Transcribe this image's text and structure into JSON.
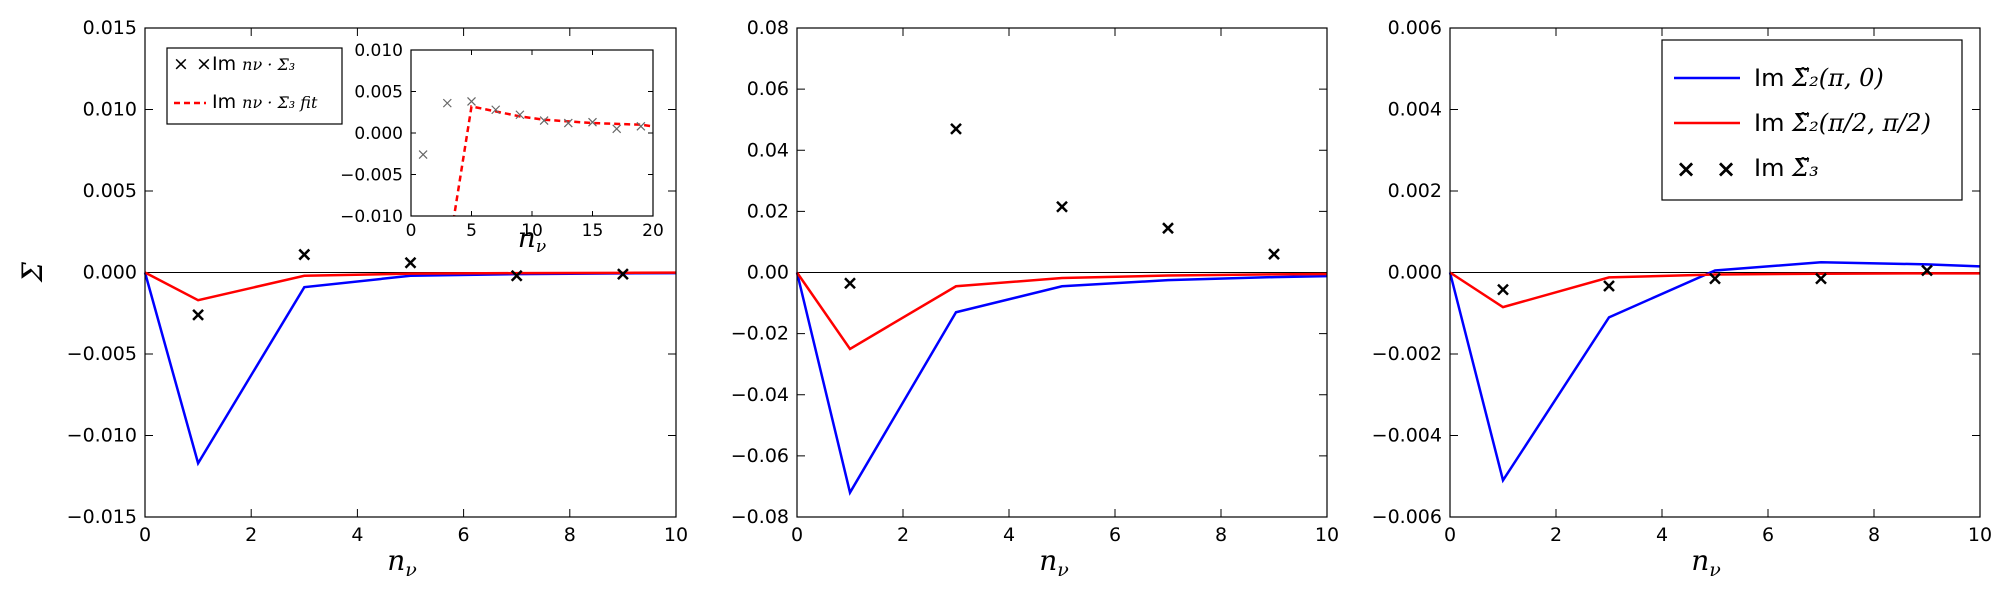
{
  "figure": {
    "ylabel": "Σ",
    "xlabel_base": "n",
    "xlabel_sub": "ν"
  },
  "chart_data": [
    {
      "type": "line",
      "xlim": [
        0,
        10
      ],
      "ylim": [
        -0.015,
        0.015
      ],
      "xticks": [
        0,
        2,
        4,
        6,
        8,
        10
      ],
      "yticks": [
        -0.015,
        -0.01,
        -0.005,
        0.0,
        0.005,
        0.01,
        0.015
      ],
      "ytick_labels": [
        "−0.015",
        "−0.010",
        "−0.005",
        "0.000",
        "0.005",
        "0.010",
        "0.015"
      ],
      "xlabel": "nν",
      "ylabel": "Σ",
      "series": [
        {
          "kind": "line",
          "color": "#0000ff",
          "x": [
            0,
            1,
            3,
            5,
            7,
            9,
            10
          ],
          "y": [
            0,
            -0.0117,
            -0.0009,
            -0.0002,
            -0.0001,
            -5e-05,
            -4e-05
          ]
        },
        {
          "kind": "line",
          "color": "#ff0000",
          "x": [
            0,
            1,
            3,
            5,
            7,
            9,
            10
          ],
          "y": [
            0,
            -0.0017,
            -0.0002,
            -7e-05,
            -4e-05,
            -2e-05,
            -1e-05
          ]
        },
        {
          "kind": "marker",
          "color": "#000000",
          "x": [
            1,
            3,
            5,
            7,
            9
          ],
          "y": [
            -0.0026,
            0.0011,
            0.0006,
            -0.0002,
            -0.0001
          ]
        }
      ],
      "legend": {
        "position": "upper-left",
        "entries": [
          {
            "marker": "x",
            "label_prefix": "Im",
            "label_math": "nν · Σ̄₃"
          },
          {
            "marker": "dashed",
            "label_prefix": "Im",
            "label_math": "nν · Σ̄₃ fit"
          }
        ]
      },
      "inset": {
        "type": "scatter",
        "xlim": [
          0,
          20
        ],
        "ylim": [
          -0.01,
          0.01
        ],
        "xticks": [
          0,
          5,
          10,
          15,
          20
        ],
        "yticks": [
          -0.01,
          -0.005,
          0.0,
          0.005,
          0.01
        ],
        "ytick_labels": [
          "−0.010",
          "−0.005",
          "0.000",
          "0.005",
          "0.010"
        ],
        "xlabel": "nν",
        "data": {
          "x": [
            1,
            3,
            5,
            7,
            9,
            11,
            13,
            15,
            17,
            19
          ],
          "y": [
            -0.0026,
            0.0036,
            0.0038,
            0.0028,
            0.0022,
            0.0015,
            0.0012,
            0.0013,
            0.0005,
            0.0008
          ]
        },
        "fit": {
          "x": [
            3.5,
            5,
            7,
            9,
            11,
            13,
            15,
            17,
            19,
            20
          ],
          "y": [
            -0.0106,
            0.0032,
            0.0026,
            0.002,
            0.0016,
            0.0014,
            0.0012,
            0.0011,
            0.001,
            0.0008
          ]
        }
      }
    },
    {
      "type": "line",
      "xlim": [
        0,
        10
      ],
      "ylim": [
        -0.08,
        0.08
      ],
      "xticks": [
        0,
        2,
        4,
        6,
        8,
        10
      ],
      "yticks": [
        -0.08,
        -0.06,
        -0.04,
        -0.02,
        0.0,
        0.02,
        0.04,
        0.06,
        0.08
      ],
      "ytick_labels": [
        "−0.08",
        "−0.06",
        "−0.04",
        "−0.02",
        "0.00",
        "0.02",
        "0.04",
        "0.06",
        "0.08"
      ],
      "xlabel": "nν",
      "series": [
        {
          "kind": "line",
          "color": "#0000ff",
          "x": [
            0,
            1,
            3,
            5,
            7,
            9,
            10
          ],
          "y": [
            0,
            -0.072,
            -0.013,
            -0.0045,
            -0.0025,
            -0.0015,
            -0.0012
          ]
        },
        {
          "kind": "line",
          "color": "#ff0000",
          "x": [
            0,
            1,
            3,
            5,
            7,
            9,
            10
          ],
          "y": [
            0,
            -0.025,
            -0.0045,
            -0.0018,
            -0.001,
            -0.0006,
            -0.0005
          ]
        },
        {
          "kind": "marker",
          "color": "#000000",
          "x": [
            1,
            3,
            5,
            7,
            9
          ],
          "y": [
            -0.0035,
            0.047,
            0.0215,
            0.0145,
            0.006
          ]
        }
      ]
    },
    {
      "type": "line",
      "xlim": [
        0,
        10
      ],
      "ylim": [
        -0.006,
        0.006
      ],
      "xticks": [
        0,
        2,
        4,
        6,
        8,
        10
      ],
      "yticks": [
        -0.006,
        -0.004,
        -0.002,
        0.0,
        0.002,
        0.004,
        0.006
      ],
      "ytick_labels": [
        "−0.006",
        "−0.004",
        "−0.002",
        "0.000",
        "0.002",
        "0.004",
        "0.006"
      ],
      "xlabel": "nν",
      "series": [
        {
          "kind": "line",
          "color": "#0000ff",
          "label_prefix": "Im",
          "label_math": "Σ̃₂(π, 0)",
          "x": [
            0,
            1,
            3,
            5,
            7,
            9,
            10
          ],
          "y": [
            0,
            -0.0051,
            -0.0011,
            5e-05,
            0.00025,
            0.0002,
            0.00015
          ]
        },
        {
          "kind": "line",
          "color": "#ff0000",
          "label_prefix": "Im",
          "label_math": "Σ̃₂(π/2, π/2)",
          "x": [
            0,
            1,
            3,
            5,
            7,
            9,
            10
          ],
          "y": [
            0,
            -0.00085,
            -0.00012,
            -5e-05,
            -3e-05,
            -2e-05,
            -2e-05
          ]
        },
        {
          "kind": "marker",
          "color": "#000000",
          "label_prefix": "Im",
          "label_math": "Σ̃₃",
          "x": [
            1,
            3,
            5,
            7,
            9
          ],
          "y": [
            -0.00042,
            -0.00033,
            -0.00015,
            -0.00015,
            5e-05
          ]
        }
      ],
      "legend": {
        "position": "upper-right"
      }
    }
  ]
}
